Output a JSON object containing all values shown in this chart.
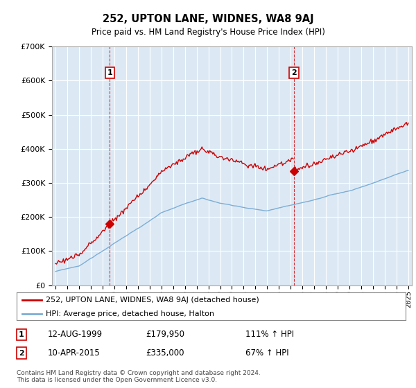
{
  "title": "252, UPTON LANE, WIDNES, WA8 9AJ",
  "subtitle": "Price paid vs. HM Land Registry's House Price Index (HPI)",
  "background_color": "#ffffff",
  "plot_bg_color": "#dce9f5",
  "grid_color": "#ffffff",
  "red_color": "#cc0000",
  "blue_color": "#7dadd4",
  "ylim_min": 0,
  "ylim_max": 700000,
  "sale1_year": 1999.617,
  "sale1_price": 179950,
  "sale2_year": 2015.274,
  "sale2_price": 335000,
  "legend_line1": "252, UPTON LANE, WIDNES, WA8 9AJ (detached house)",
  "legend_line2": "HPI: Average price, detached house, Halton",
  "annotation1_date": "12-AUG-1999",
  "annotation1_price": "£179,950",
  "annotation1_hpi": "111% ↑ HPI",
  "annotation2_date": "10-APR-2015",
  "annotation2_price": "£335,000",
  "annotation2_hpi": "67% ↑ HPI",
  "footer": "Contains HM Land Registry data © Crown copyright and database right 2024.\nThis data is licensed under the Open Government Licence v3.0."
}
